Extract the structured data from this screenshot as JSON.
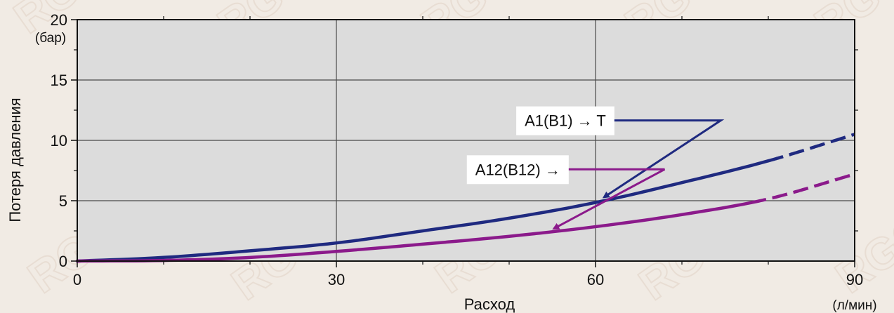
{
  "chart_data": {
    "type": "line",
    "xlabel": "Расход",
    "ylabel": "Потеря давления",
    "x_unit": "(л/мин)",
    "y_unit": "(бар)",
    "xlim": [
      0,
      90
    ],
    "ylim": [
      0,
      20
    ],
    "x_ticks": [
      0,
      30,
      60,
      90
    ],
    "y_ticks": [
      0,
      5,
      10,
      15,
      20
    ],
    "x_minor_ticks": [
      10,
      20,
      40,
      50,
      70,
      80
    ],
    "y_minor_ticks": [
      2.5,
      7.5,
      12.5,
      17.5
    ],
    "grid": true,
    "series": [
      {
        "name": "A1(B1) → T",
        "color": "#1f2a80",
        "solid_until_x": 80,
        "x": [
          0,
          10,
          20,
          30,
          40,
          50,
          60,
          70,
          80,
          90
        ],
        "y": [
          0,
          0.3,
          0.85,
          1.5,
          2.5,
          3.55,
          4.85,
          6.5,
          8.3,
          10.5
        ]
      },
      {
        "name": "A12(B12) →",
        "color": "#8b1a8b",
        "solid_until_x": 78,
        "x": [
          0,
          10,
          20,
          30,
          40,
          50,
          60,
          70,
          80,
          90
        ],
        "y": [
          0,
          0.05,
          0.3,
          0.8,
          1.4,
          2.05,
          2.85,
          3.85,
          5.15,
          7.2
        ]
      }
    ],
    "annotations": [
      {
        "text": "A1(B1) → T",
        "series": 0,
        "label_x": 56.5,
        "label_y": 11.65,
        "bend_x": 74.5,
        "arrow_x": 61,
        "arrow_y": 5.3
      },
      {
        "text": "A12(B12) →",
        "series": 1,
        "label_x": 51,
        "label_y": 7.6,
        "bend_x": 68,
        "arrow_x": 55.2,
        "arrow_y": 2.7
      }
    ]
  },
  "watermark": "RGC"
}
